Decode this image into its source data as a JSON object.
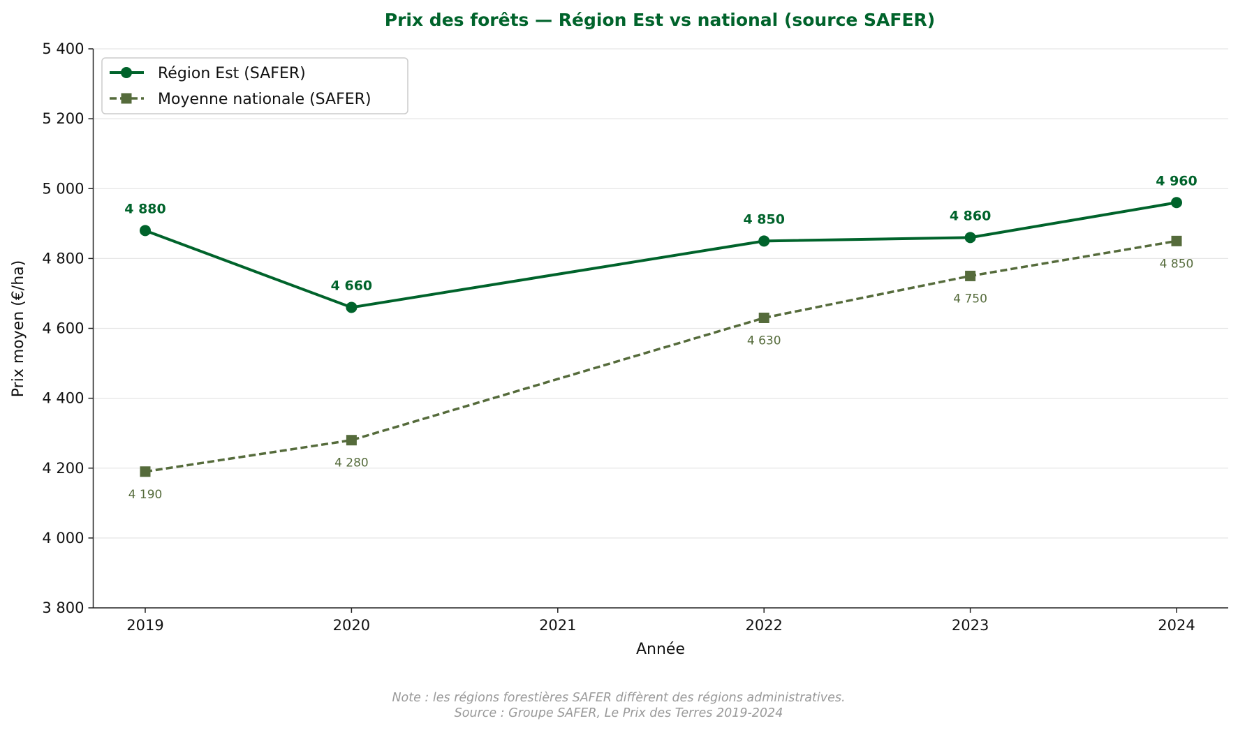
{
  "chart_data": {
    "type": "line",
    "title": "Prix des forêts — Région Est vs national (source SAFER)",
    "xlabel": "Année",
    "ylabel": "Prix moyen (€/ha)",
    "x_ticks": [
      "2019",
      "2020",
      "2021",
      "2022",
      "2023",
      "2024"
    ],
    "xlim": [
      2018.75,
      2024.25
    ],
    "ylim": [
      3800,
      5400
    ],
    "y_ticks": [
      3800,
      4000,
      4200,
      4400,
      4600,
      4800,
      5000,
      5200,
      5400
    ],
    "y_tick_labels": [
      "3 800",
      "4 000",
      "4 200",
      "4 400",
      "4 600",
      "4 800",
      "5 000",
      "5 200",
      "5 400"
    ],
    "grid": "horizontal",
    "legend_position": "top-left",
    "series": [
      {
        "name": "Région Est (SAFER)",
        "x": [
          2019,
          2020,
          2022,
          2023,
          2024
        ],
        "values": [
          4880,
          4660,
          4850,
          4860,
          4960
        ],
        "labels": [
          "4 880",
          "4 660",
          "4 850",
          "4 860",
          "4 960"
        ],
        "color": "#00632b",
        "marker": "circle",
        "linestyle": "solid"
      },
      {
        "name": "Moyenne nationale (SAFER)",
        "x": [
          2019,
          2020,
          2022,
          2023,
          2024
        ],
        "values": [
          4190,
          4280,
          4630,
          4750,
          4850
        ],
        "labels": [
          "4 190",
          "4 280",
          "4 630",
          "4 750",
          "4 850"
        ],
        "color": "#556b3b",
        "marker": "square",
        "linestyle": "dashed"
      }
    ],
    "footnote": [
      "Note : les régions forestières SAFER diffèrent des régions administratives.",
      "Source : Groupe SAFER, Le Prix des Terres 2019-2024"
    ]
  }
}
